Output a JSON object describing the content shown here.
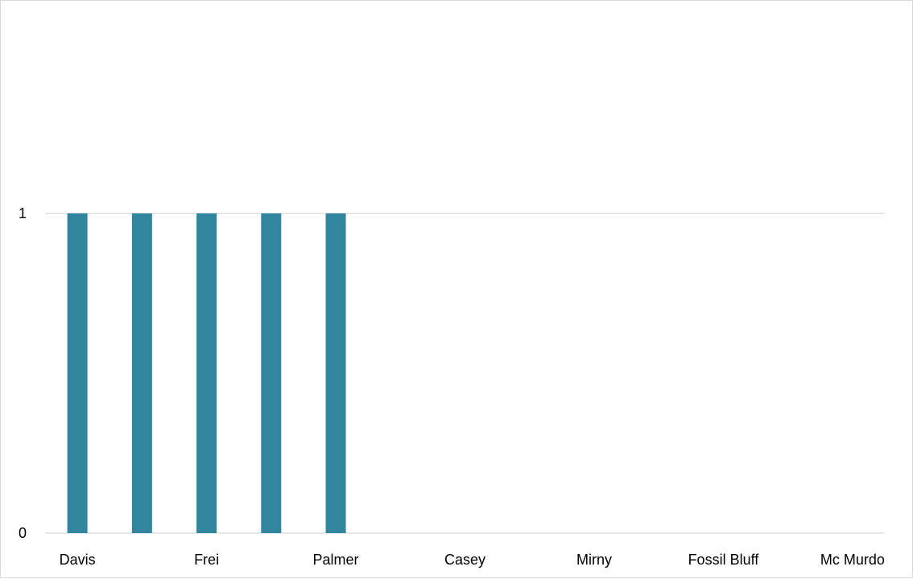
{
  "chart_data": {
    "type": "bar",
    "title": "",
    "xlabel": "",
    "ylabel": "",
    "categories": [
      "Davis",
      "",
      "Frei",
      "",
      "Palmer",
      "",
      "Casey",
      "",
      "Mirny",
      "",
      "Fossil Bluff",
      "",
      "Mc Murdo"
    ],
    "series": [
      {
        "values": [
          1,
          1,
          1,
          1,
          1,
          0,
          0,
          0,
          0,
          0,
          0,
          0,
          0
        ]
      }
    ],
    "ylim": [
      0,
      1
    ],
    "yticks": [
      "0",
      "1"
    ],
    "grid": true,
    "legend": "none",
    "colors": {
      "bar": "#31859c",
      "grid": "#d9d9d9",
      "text": "#000000"
    }
  }
}
